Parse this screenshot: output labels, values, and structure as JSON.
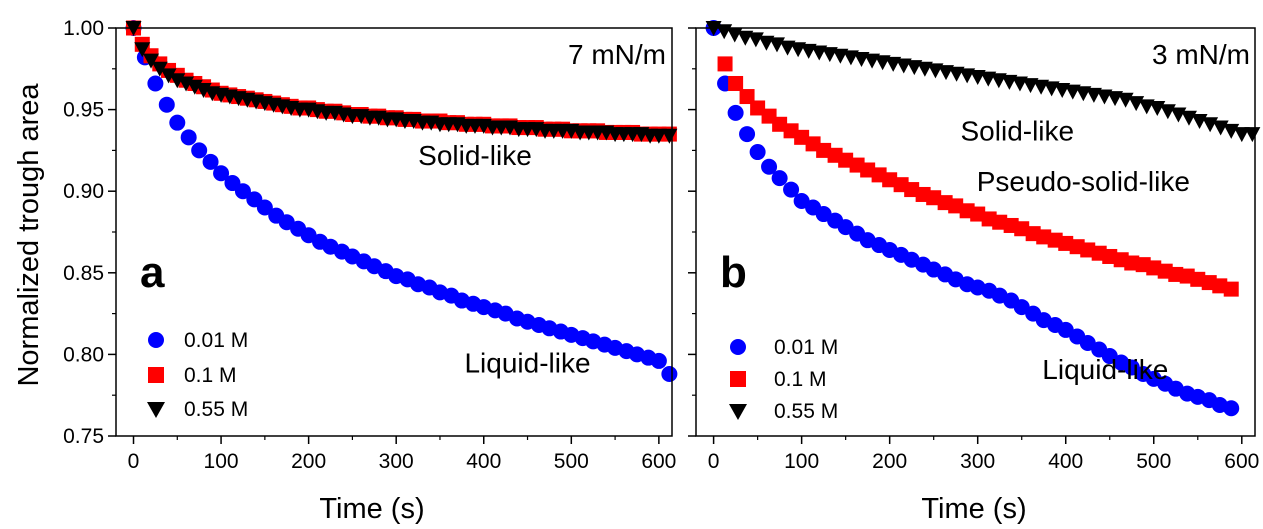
{
  "chart_data": [
    {
      "type": "scatter",
      "panel_label": "a",
      "annotation": "7 mN/m",
      "xlabel": "Time (s)",
      "ylabel": "Normalized trough area",
      "xlim": [
        -20,
        615
      ],
      "ylim": [
        0.75,
        1.0
      ],
      "xticks": [
        "0",
        "100",
        "200",
        "300",
        "400",
        "500",
        "600"
      ],
      "yticks": [
        "0.75",
        "0.80",
        "0.85",
        "0.90",
        "0.95",
        "1.00"
      ],
      "region_labels": [
        {
          "text": "Solid-like",
          "x": 390,
          "y": 0.916
        },
        {
          "text": "Liquid-like",
          "x": 450,
          "y": 0.789
        }
      ],
      "legend_position": "lower-left",
      "series": [
        {
          "name": "0.01 M",
          "marker": "circle",
          "color": "#0000ff",
          "x": [
            0,
            13,
            25,
            38,
            50,
            63,
            75,
            88,
            100,
            113,
            125,
            138,
            150,
            163,
            175,
            188,
            200,
            213,
            225,
            238,
            250,
            263,
            275,
            288,
            300,
            313,
            325,
            338,
            350,
            363,
            375,
            388,
            400,
            413,
            425,
            438,
            450,
            463,
            475,
            488,
            500,
            513,
            525,
            538,
            550,
            563,
            575,
            588,
            600,
            612
          ],
          "y": [
            1.0,
            0.982,
            0.966,
            0.953,
            0.942,
            0.933,
            0.925,
            0.918,
            0.911,
            0.905,
            0.9,
            0.895,
            0.89,
            0.885,
            0.881,
            0.877,
            0.873,
            0.869,
            0.866,
            0.863,
            0.86,
            0.857,
            0.854,
            0.851,
            0.848,
            0.846,
            0.843,
            0.841,
            0.838,
            0.836,
            0.833,
            0.831,
            0.829,
            0.827,
            0.825,
            0.822,
            0.82,
            0.818,
            0.816,
            0.814,
            0.812,
            0.81,
            0.808,
            0.806,
            0.804,
            0.802,
            0.8,
            0.798,
            0.796,
            0.788
          ]
        },
        {
          "name": "0.1 M",
          "marker": "square",
          "color": "#ff0000",
          "x": [
            0,
            10,
            20,
            30,
            40,
            50,
            60,
            70,
            80,
            90,
            100,
            110,
            120,
            130,
            140,
            150,
            160,
            170,
            180,
            190,
            200,
            210,
            220,
            230,
            240,
            250,
            260,
            270,
            280,
            290,
            300,
            310,
            320,
            330,
            340,
            350,
            360,
            370,
            380,
            390,
            400,
            410,
            420,
            430,
            440,
            450,
            460,
            470,
            480,
            490,
            500,
            510,
            520,
            530,
            540,
            550,
            560,
            570,
            580,
            590,
            600,
            612
          ],
          "y": [
            1.0,
            0.99,
            0.983,
            0.978,
            0.974,
            0.971,
            0.968,
            0.966,
            0.964,
            0.962,
            0.96,
            0.959,
            0.958,
            0.957,
            0.956,
            0.955,
            0.954,
            0.953,
            0.952,
            0.951,
            0.951,
            0.95,
            0.949,
            0.949,
            0.948,
            0.947,
            0.947,
            0.946,
            0.946,
            0.945,
            0.945,
            0.944,
            0.944,
            0.943,
            0.943,
            0.943,
            0.942,
            0.942,
            0.941,
            0.941,
            0.941,
            0.94,
            0.94,
            0.94,
            0.939,
            0.939,
            0.939,
            0.938,
            0.938,
            0.938,
            0.937,
            0.937,
            0.937,
            0.937,
            0.936,
            0.936,
            0.936,
            0.936,
            0.935,
            0.935,
            0.935,
            0.935
          ]
        },
        {
          "name": "0.55 M",
          "marker": "triangle-down",
          "color": "#000000",
          "x": [
            0,
            10,
            20,
            30,
            40,
            50,
            60,
            70,
            80,
            90,
            100,
            110,
            120,
            130,
            140,
            150,
            160,
            170,
            180,
            190,
            200,
            210,
            220,
            230,
            240,
            250,
            260,
            270,
            280,
            290,
            300,
            310,
            320,
            330,
            340,
            350,
            360,
            370,
            380,
            390,
            400,
            410,
            420,
            430,
            440,
            450,
            460,
            470,
            480,
            490,
            500,
            510,
            520,
            530,
            540,
            550,
            560,
            570,
            580,
            590,
            600,
            612
          ],
          "y": [
            1.0,
            0.987,
            0.98,
            0.975,
            0.971,
            0.968,
            0.966,
            0.964,
            0.962,
            0.96,
            0.959,
            0.958,
            0.957,
            0.956,
            0.955,
            0.954,
            0.953,
            0.952,
            0.951,
            0.95,
            0.95,
            0.949,
            0.948,
            0.948,
            0.947,
            0.946,
            0.946,
            0.945,
            0.945,
            0.944,
            0.944,
            0.943,
            0.943,
            0.942,
            0.942,
            0.941,
            0.941,
            0.941,
            0.94,
            0.94,
            0.94,
            0.939,
            0.939,
            0.939,
            0.938,
            0.938,
            0.938,
            0.937,
            0.937,
            0.937,
            0.937,
            0.936,
            0.936,
            0.936,
            0.936,
            0.935,
            0.935,
            0.935,
            0.935,
            0.934,
            0.934,
            0.934
          ]
        }
      ]
    },
    {
      "type": "scatter",
      "panel_label": "b",
      "annotation": "3 mN/m",
      "xlabel": "Time (s)",
      "ylabel": "",
      "xlim": [
        -20,
        615
      ],
      "ylim": [
        0.75,
        1.0
      ],
      "xticks": [
        "0",
        "100",
        "200",
        "300",
        "400",
        "500",
        "600"
      ],
      "yticks": [
        "0.75",
        "0.80",
        "0.85",
        "0.90",
        "0.95",
        "1.00"
      ],
      "region_labels": [
        {
          "text": "Solid-like",
          "x": 345,
          "y": 0.931
        },
        {
          "text": "Pseudo-solid-like",
          "x": 420,
          "y": 0.9
        },
        {
          "text": "Liquid-like",
          "x": 445,
          "y": 0.785
        }
      ],
      "legend_position": "lower-left",
      "series": [
        {
          "name": "0.01 M",
          "marker": "circle",
          "color": "#0000ff",
          "x": [
            0,
            13,
            25,
            38,
            50,
            63,
            75,
            88,
            100,
            113,
            125,
            138,
            150,
            163,
            175,
            188,
            200,
            213,
            225,
            238,
            250,
            263,
            275,
            288,
            300,
            313,
            325,
            338,
            350,
            363,
            375,
            388,
            400,
            413,
            425,
            438,
            450,
            463,
            475,
            488,
            500,
            513,
            525,
            538,
            550,
            563,
            575,
            588
          ],
          "y": [
            1.0,
            0.966,
            0.948,
            0.935,
            0.924,
            0.915,
            0.908,
            0.901,
            0.894,
            0.89,
            0.886,
            0.882,
            0.878,
            0.874,
            0.87,
            0.867,
            0.864,
            0.861,
            0.858,
            0.855,
            0.852,
            0.849,
            0.846,
            0.843,
            0.841,
            0.839,
            0.836,
            0.833,
            0.829,
            0.825,
            0.821,
            0.818,
            0.815,
            0.811,
            0.807,
            0.803,
            0.799,
            0.795,
            0.792,
            0.788,
            0.785,
            0.782,
            0.779,
            0.776,
            0.774,
            0.772,
            0.769,
            0.767
          ]
        },
        {
          "name": "0.1 M",
          "marker": "square",
          "color": "#ff0000",
          "x": [
            13,
            25,
            38,
            50,
            63,
            75,
            88,
            100,
            113,
            125,
            138,
            150,
            163,
            175,
            188,
            200,
            213,
            225,
            238,
            250,
            263,
            275,
            288,
            300,
            313,
            325,
            338,
            350,
            363,
            375,
            388,
            400,
            413,
            425,
            438,
            450,
            463,
            475,
            488,
            500,
            513,
            525,
            538,
            550,
            563,
            575,
            588
          ],
          "y": [
            0.978,
            0.966,
            0.958,
            0.951,
            0.946,
            0.941,
            0.937,
            0.933,
            0.929,
            0.925,
            0.922,
            0.919,
            0.916,
            0.913,
            0.91,
            0.907,
            0.904,
            0.901,
            0.898,
            0.896,
            0.893,
            0.891,
            0.888,
            0.886,
            0.883,
            0.881,
            0.879,
            0.877,
            0.874,
            0.872,
            0.87,
            0.868,
            0.866,
            0.864,
            0.862,
            0.86,
            0.858,
            0.856,
            0.855,
            0.853,
            0.851,
            0.849,
            0.848,
            0.846,
            0.844,
            0.842,
            0.84
          ]
        },
        {
          "name": "0.55 M",
          "marker": "triangle-down",
          "color": "#000000",
          "x": [
            0,
            12,
            24,
            36,
            48,
            60,
            72,
            84,
            96,
            108,
            120,
            132,
            144,
            156,
            168,
            180,
            192,
            204,
            216,
            228,
            240,
            252,
            264,
            276,
            288,
            300,
            312,
            324,
            336,
            348,
            360,
            372,
            384,
            396,
            408,
            420,
            432,
            444,
            456,
            468,
            480,
            492,
            504,
            516,
            528,
            540,
            552,
            564,
            576,
            588,
            600,
            612
          ],
          "y": [
            1.0,
            0.998,
            0.996,
            0.994,
            0.993,
            0.991,
            0.99,
            0.988,
            0.987,
            0.986,
            0.985,
            0.984,
            0.983,
            0.982,
            0.981,
            0.98,
            0.979,
            0.978,
            0.977,
            0.976,
            0.975,
            0.974,
            0.973,
            0.972,
            0.971,
            0.97,
            0.969,
            0.968,
            0.967,
            0.966,
            0.965,
            0.964,
            0.963,
            0.962,
            0.961,
            0.96,
            0.959,
            0.958,
            0.957,
            0.956,
            0.954,
            0.952,
            0.951,
            0.949,
            0.947,
            0.945,
            0.943,
            0.941,
            0.939,
            0.937,
            0.935,
            0.935
          ]
        }
      ]
    }
  ]
}
